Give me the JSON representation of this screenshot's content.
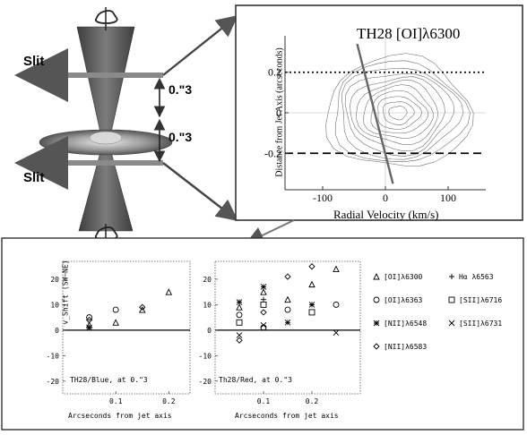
{
  "diagram": {
    "slit_upper": "Slit",
    "slit_lower": "Slit",
    "sep_upper": "0.\"3",
    "sep_lower": "0.\"3",
    "colors": {
      "jet": "#5a5a5a",
      "disk": "#a9a9a9",
      "arrow": "#7a7a7a",
      "outline": "#444444"
    }
  },
  "chart_data": [
    {
      "type": "contour",
      "title": "TH28 [OI]λ6300",
      "xlabel": "Radial Velocity (km/s)",
      "ylabel": "Distance from Jet Axis (arcseconds)",
      "xlim": [
        -160,
        160
      ],
      "ylim": [
        -0.38,
        0.38
      ],
      "xticks": [
        -100,
        0,
        100
      ],
      "yticks": [
        0.2,
        0,
        -0.2
      ],
      "xtick_labels": [
        "-100",
        "0",
        "100"
      ],
      "ytick_labels": [
        "0.2",
        "0",
        "-0.2"
      ],
      "slit_positions": {
        "dotted": 0.2,
        "dashed": -0.2
      },
      "fit_line": [
        [
          -45,
          0.34
        ],
        [
          12,
          -0.35
        ]
      ],
      "contour_center": [
        20,
        0
      ],
      "contour_levels": 11
    },
    {
      "type": "scatter",
      "title": "TH28/Blue, at 0.\"3",
      "xlabel": "Arcseconds from jet axis",
      "ylabel": "v_Shift (SW−NE)",
      "xlim": [
        0,
        0.24
      ],
      "ylim": [
        -25,
        27
      ],
      "xticks": [
        0.1,
        0.2
      ],
      "xtick_labels": [
        "0.1",
        "0.2"
      ],
      "yticks": [
        20,
        10,
        0,
        -10,
        -20
      ],
      "ytick_labels": [
        "20",
        "10",
        "0",
        "-10",
        "-20"
      ],
      "series": [
        {
          "name": "[OI]λ6300",
          "marker": "triangle",
          "points": [
            [
              0.05,
              2
            ],
            [
              0.1,
              3
            ],
            [
              0.15,
              8
            ],
            [
              0.2,
              15
            ]
          ]
        },
        {
          "name": "[OI]λ6363",
          "marker": "circle",
          "points": [
            [
              0.05,
              5
            ],
            [
              0.1,
              8
            ]
          ]
        },
        {
          "name": "[NII]λ6548",
          "marker": "star",
          "points": [
            [
              0.05,
              1
            ]
          ]
        },
        {
          "name": "[NII]λ6583",
          "marker": "diamond",
          "points": [
            [
              0.05,
              4
            ],
            [
              0.15,
              9
            ]
          ]
        }
      ]
    },
    {
      "type": "scatter",
      "title": "Th28/Red, at 0.\"3",
      "xlabel": "Arcseconds from jet axis",
      "ylabel": "",
      "xlim": [
        0,
        0.3
      ],
      "ylim": [
        -25,
        27
      ],
      "xticks": [
        0.1,
        0.2
      ],
      "xtick_labels": [
        "0.1",
        "0.2"
      ],
      "yticks": [
        20,
        10,
        0,
        -10,
        -20
      ],
      "ytick_labels": [
        "20",
        "10",
        "0",
        "-10",
        "-20"
      ],
      "series": [
        {
          "name": "[OI]λ6300",
          "marker": "triangle",
          "points": [
            [
              0.05,
              9
            ],
            [
              0.1,
              15
            ],
            [
              0.15,
              12
            ],
            [
              0.2,
              18
            ],
            [
              0.25,
              24
            ]
          ]
        },
        {
          "name": "[OI]λ6363",
          "marker": "circle",
          "points": [
            [
              0.05,
              6
            ],
            [
              0.1,
              1
            ],
            [
              0.15,
              8
            ],
            [
              0.25,
              10
            ]
          ]
        },
        {
          "name": "[NII]λ6548",
          "marker": "star",
          "points": [
            [
              0.05,
              11
            ],
            [
              0.1,
              17
            ],
            [
              0.15,
              3
            ],
            [
              0.2,
              10
            ]
          ]
        },
        {
          "name": "[NII]λ6583",
          "marker": "diamond",
          "points": [
            [
              0.05,
              -4
            ],
            [
              0.1,
              7
            ],
            [
              0.15,
              21
            ],
            [
              0.2,
              25
            ]
          ]
        },
        {
          "name": "Hα λ6563",
          "marker": "plus",
          "points": [
            [
              0.1,
              12
            ]
          ]
        },
        {
          "name": "[SII]λ6716",
          "marker": "square",
          "points": [
            [
              0.05,
              3
            ],
            [
              0.1,
              10
            ],
            [
              0.2,
              7
            ]
          ]
        },
        {
          "name": "[SII]λ6731",
          "marker": "x",
          "points": [
            [
              0.05,
              -2
            ],
            [
              0.1,
              2
            ],
            [
              0.25,
              -1
            ]
          ]
        }
      ]
    }
  ],
  "legend": {
    "entries": [
      {
        "label": "[OI]λ6300",
        "marker": "triangle"
      },
      {
        "label": "Hα λ6563",
        "marker": "plus"
      },
      {
        "label": "[OI]λ6363",
        "marker": "circle"
      },
      {
        "label": "[SII]λ6716",
        "marker": "square"
      },
      {
        "label": "[NII]λ6548",
        "marker": "star"
      },
      {
        "label": "[SII]λ6731",
        "marker": "x"
      },
      {
        "label": "[NII]λ6583",
        "marker": "diamond"
      }
    ]
  }
}
